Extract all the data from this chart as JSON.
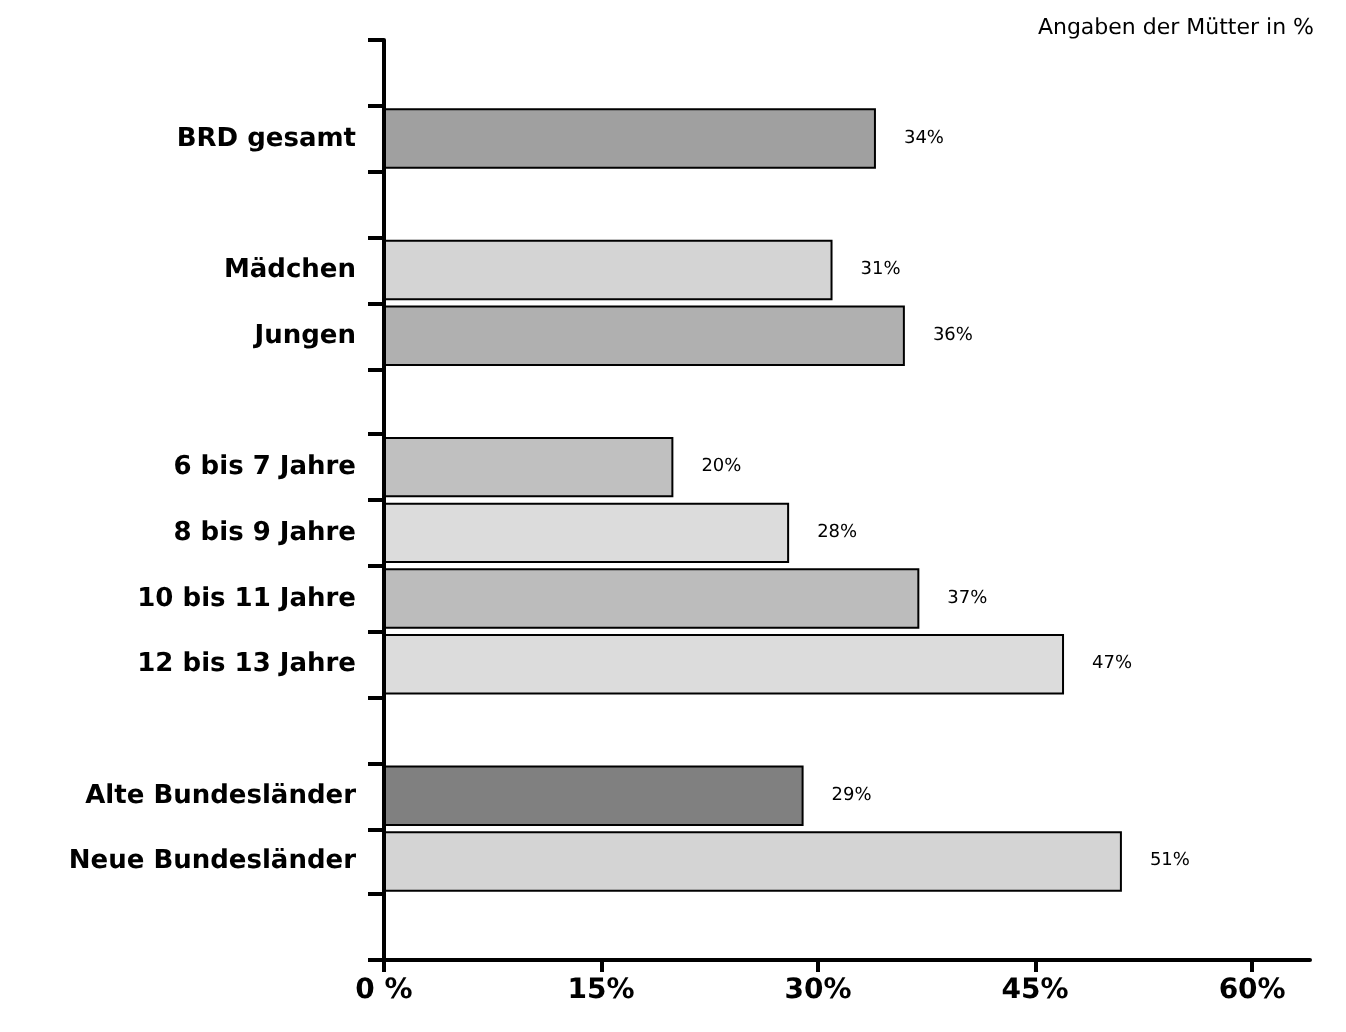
{
  "chart_data": {
    "type": "bar",
    "orientation": "horizontal",
    "categories": [
      null,
      "BRD gesamt",
      null,
      "Mädchen",
      "Jungen",
      null,
      "6 bis 7 Jahre",
      "8 bis 9 Jahre",
      "10 bis 11 Jahre",
      "12 bis 13 Jahre",
      null,
      "Alte Bundesländer",
      "Neue Bundesländer",
      null
    ],
    "values": [
      null,
      34,
      null,
      31,
      36,
      null,
      20,
      28,
      37,
      47,
      null,
      29,
      51,
      null
    ],
    "value_labels": [
      null,
      "34%",
      null,
      "31%",
      "36%",
      null,
      "20%",
      "28%",
      "37%",
      "47%",
      null,
      "29%",
      "51%",
      null
    ],
    "colors": [
      "#a0a0a0",
      "#a0a0a0",
      "#d4d4d4",
      "#d4d4d4",
      "#b0b0b0",
      "#c0c0c0",
      "#c0c0c0",
      "#dcdcdc",
      "#bcbcbc",
      "#dcdcdc",
      "#808080",
      "#808080",
      "#d4d4d4",
      "#d4d4d4"
    ],
    "xlim": [
      0,
      64
    ],
    "xticks": [
      {
        "value": 0,
        "label": "0 %"
      },
      {
        "value": 15,
        "label": "15%"
      },
      {
        "value": 30,
        "label": "30%"
      },
      {
        "value": 45,
        "label": "45%"
      },
      {
        "value": 60,
        "label": "60%"
      }
    ],
    "annotations": [
      "Angaben der Mütter in %"
    ],
    "grid": false
  }
}
